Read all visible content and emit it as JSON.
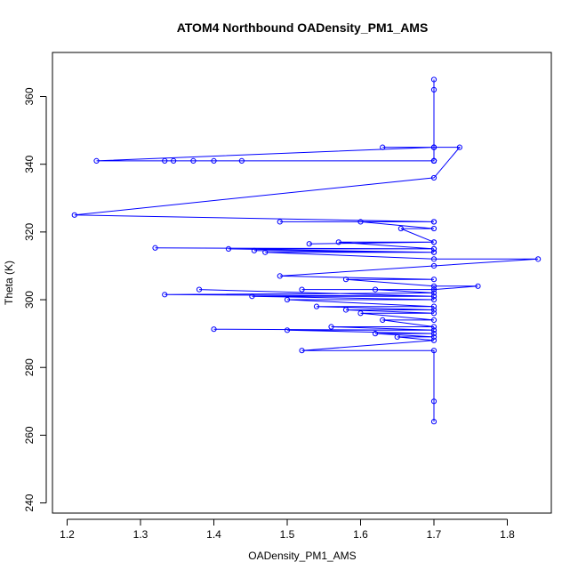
{
  "chart_data": {
    "type": "scatter",
    "title": "ATOM4 Northbound OADensity_PM1_AMS",
    "xlabel": "OADensity_PM1_AMS",
    "ylabel": "Theta (K)",
    "xlim": [
      1.18,
      1.86
    ],
    "ylim": [
      237,
      373
    ],
    "xticks": [
      "1.2",
      "1.3",
      "1.4",
      "1.5",
      "1.6",
      "1.7",
      "1.8"
    ],
    "yticks": [
      "240",
      "260",
      "280",
      "300",
      "320",
      "340",
      "360"
    ],
    "grid": false,
    "legend": "none",
    "color": "#0000ff",
    "marker": "open-circle",
    "connected": true,
    "series": [
      {
        "x": [
          1.7,
          1.7,
          1.7,
          1.24,
          1.7,
          1.333,
          1.7,
          1.345,
          1.7,
          1.372,
          1.7,
          1.4,
          1.7,
          1.438,
          1.7,
          1.7,
          1.63,
          1.7,
          1.735,
          1.7,
          1.21,
          1.7,
          1.49,
          1.7,
          1.6,
          1.7,
          1.655,
          1.7,
          1.53,
          1.7,
          1.57,
          1.7,
          1.32,
          1.7,
          1.42,
          1.7,
          1.455,
          1.7,
          1.47,
          1.7,
          1.842,
          1.7,
          1.49,
          1.7,
          1.58,
          1.7,
          1.76,
          1.7,
          1.52,
          1.7,
          1.62,
          1.7,
          1.333,
          1.7,
          1.38,
          1.7,
          1.452,
          1.7,
          1.5,
          1.7,
          1.54,
          1.7,
          1.58,
          1.7,
          1.6,
          1.7,
          1.63,
          1.7,
          1.56,
          1.7,
          1.4,
          1.7,
          1.5,
          1.7,
          1.62,
          1.7,
          1.65,
          1.7,
          1.52,
          1.7,
          1.7,
          1.7
        ],
        "y": [
          365,
          362,
          345,
          341,
          341,
          341,
          341,
          341,
          341,
          341,
          341,
          341,
          341,
          341,
          341,
          345,
          345,
          345,
          345,
          336,
          325,
          323,
          323,
          323,
          323,
          321,
          321,
          317,
          316.5,
          317,
          317,
          315,
          315.3,
          315,
          315,
          314,
          314.5,
          314,
          314,
          312,
          312,
          310,
          307,
          306,
          306,
          304,
          304,
          303,
          303,
          303,
          303,
          302,
          301.5,
          301,
          303,
          301,
          301,
          300,
          300,
          298,
          298,
          297,
          297,
          296,
          296,
          294,
          294,
          292,
          292,
          291,
          291.3,
          291,
          291,
          290,
          290,
          289,
          289,
          288,
          285,
          285,
          270,
          264
        ]
      }
    ]
  }
}
